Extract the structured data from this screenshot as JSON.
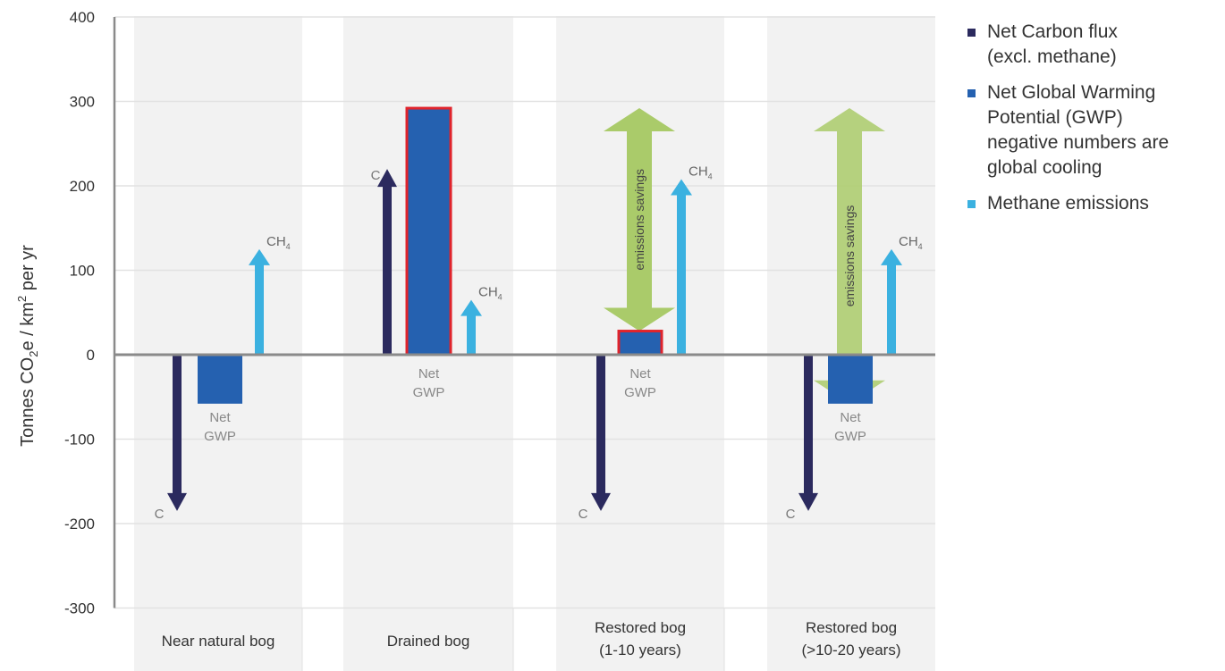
{
  "chart_data": {
    "type": "bar",
    "ylabel": "Tonnes CO2e / km² per yr",
    "ylabel_parts": {
      "a": "Tonnes CO",
      "sub": "2",
      "b": "e / km",
      "sup": "2",
      "c": " per yr"
    },
    "ylim": [
      -300,
      400
    ],
    "yticks": [
      400,
      300,
      200,
      100,
      0,
      -100,
      -200,
      -300
    ],
    "grid": true,
    "legend_position": "right",
    "categories": [
      "Near natural bog",
      "Drained bog",
      "Restored bog\n(1-10 years)",
      "Restored bog\n(>10-20 years)"
    ],
    "series": [
      {
        "name": "Net Carbon flux\n(excl. methane)",
        "color": "#2b2a5e",
        "mark": "arrow",
        "label": "C",
        "values": [
          -185,
          220,
          -185,
          -185
        ]
      },
      {
        "name": "Net Global Warming\nPotential (GWP)\nnegative numbers are\nglobal cooling",
        "color": "#2561b0",
        "mark": "bar",
        "label": "Net\nGWP",
        "values": [
          -58,
          292,
          28,
          -58
        ],
        "highlight": [
          false,
          true,
          true,
          false
        ],
        "highlight_color": "#e0242c"
      },
      {
        "name": "Methane emissions",
        "color": "#3bb1e0",
        "mark": "arrow",
        "label": "CH4",
        "values": [
          125,
          65,
          208,
          125
        ]
      }
    ],
    "annotations": [
      {
        "text": "emissions savings",
        "category": 2,
        "from": 292,
        "to": 28,
        "color": "#aacb6a"
      },
      {
        "text": "emissions savings",
        "category": 3,
        "from": 292,
        "to": -58,
        "color": "#aacb6a"
      }
    ]
  }
}
